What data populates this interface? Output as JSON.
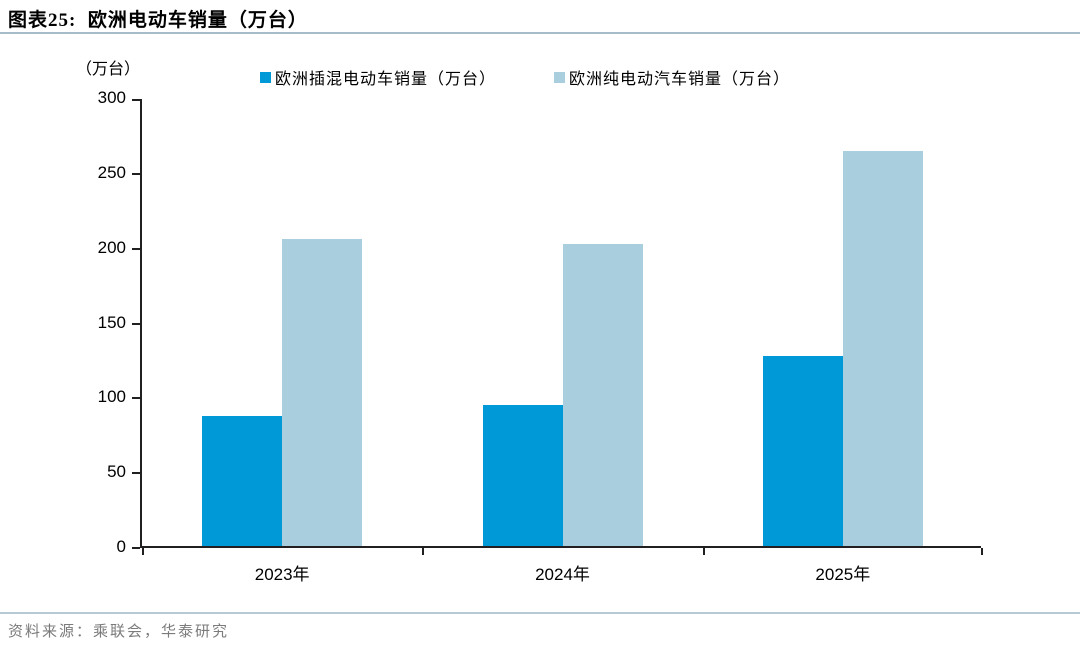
{
  "figure": {
    "title": "图表25:  欧洲电动车销量（万台）",
    "y_axis_unit": "（万台）",
    "source": "资料来源：乘联会，华泰研究"
  },
  "chart_data": {
    "type": "bar",
    "title": "欧洲电动车销量（万台）",
    "categories": [
      "2023年",
      "2024年",
      "2025年"
    ],
    "series": [
      {
        "name": "欧洲插混电动车销量（万台）",
        "color": "#0099D8",
        "values": [
          87,
          94,
          127
        ]
      },
      {
        "name": "欧洲纯电动汽车销量（万台）",
        "color": "#A9CFDF",
        "values": [
          205,
          202,
          264
        ]
      }
    ],
    "xlabel": "",
    "ylabel": "（万台）",
    "ylim": [
      0,
      300
    ],
    "yticks": [
      0,
      50,
      100,
      150,
      200,
      250,
      300
    ],
    "legend_position": "top",
    "grid": false,
    "axis_color": "#211f1f"
  }
}
